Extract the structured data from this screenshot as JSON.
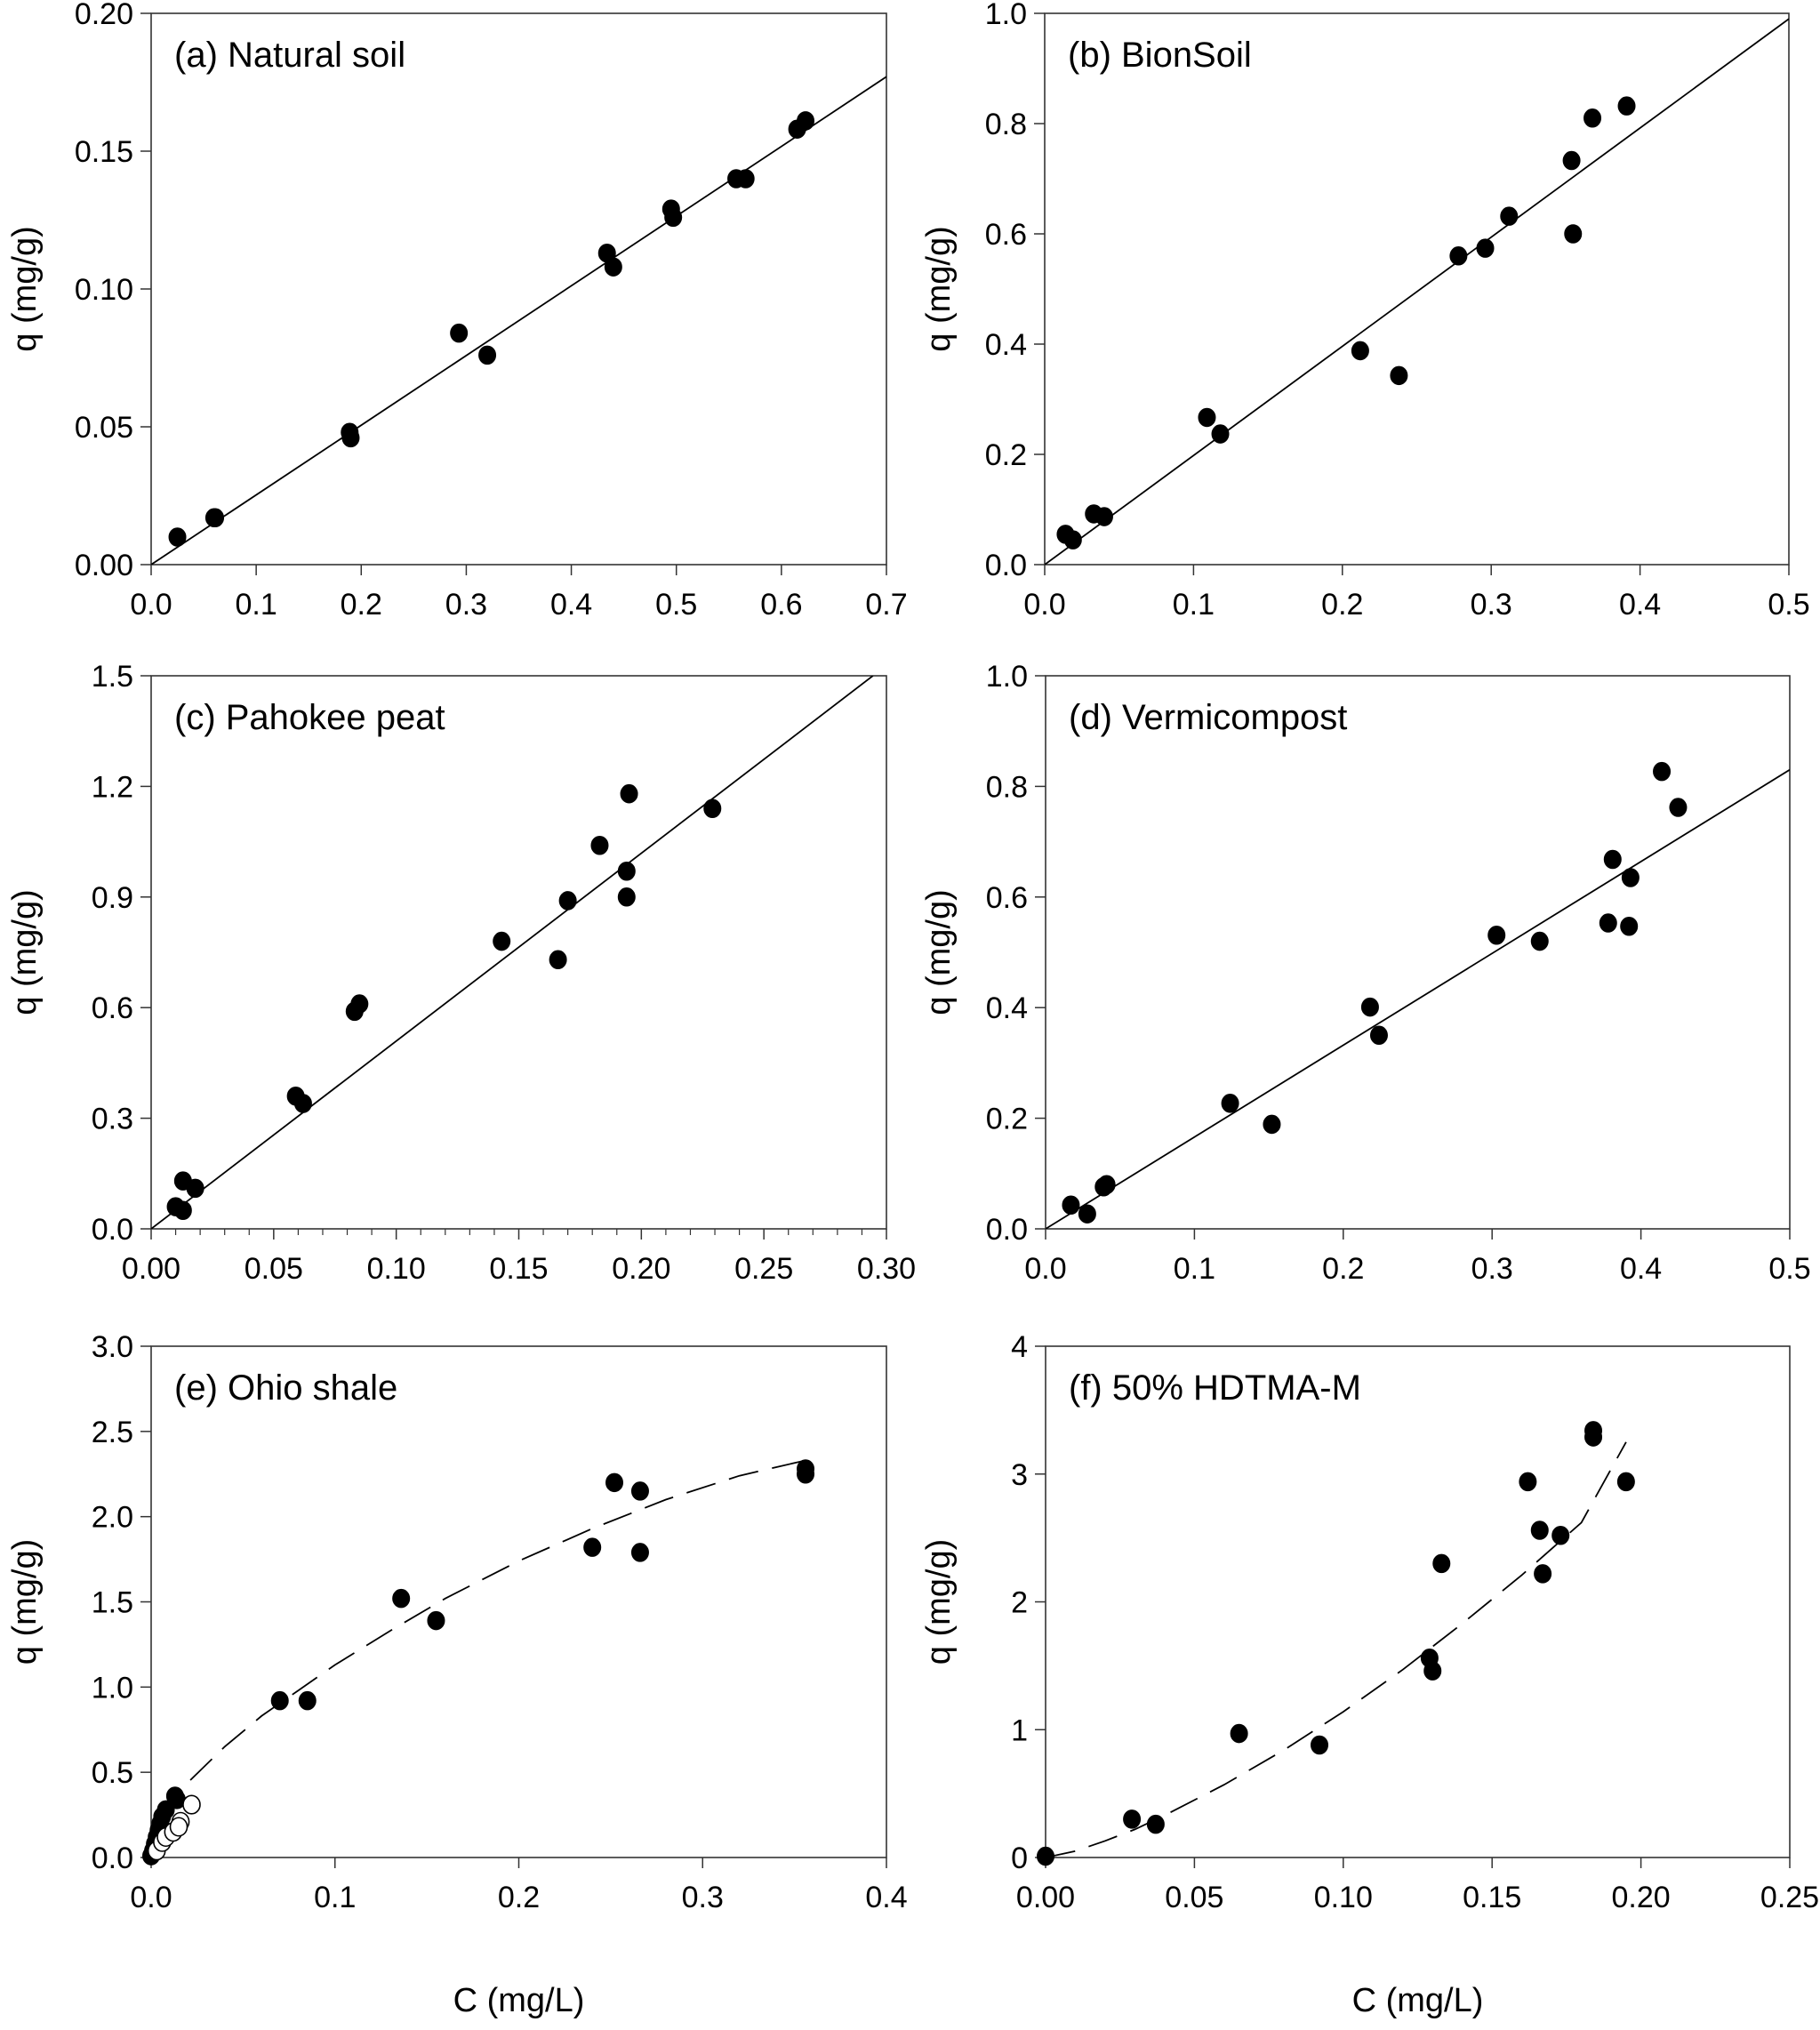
{
  "chart_data": [
    {
      "type": "scatter",
      "title": "(a) Natural soil",
      "xlabel": "",
      "ylabel": "q (mg/g)",
      "xlim": [
        0,
        0.7
      ],
      "ylim": [
        0,
        0.2
      ],
      "xticks": [
        "0.0",
        "0.1",
        "0.2",
        "0.3",
        "0.4",
        "0.5",
        "0.6",
        "0.7"
      ],
      "yticks": [
        "0.00",
        "0.05",
        "0.10",
        "0.15",
        "0.20"
      ],
      "xtick_values": [
        0,
        0.1,
        0.2,
        0.3,
        0.4,
        0.5,
        0.6,
        0.7
      ],
      "ytick_values": [
        0,
        0.05,
        0.1,
        0.15,
        0.2
      ],
      "minor_xticks": false,
      "grid": false,
      "series": [
        {
          "name": "data",
          "marker": "filled-circle",
          "points": [
            [
              0.025,
              0.01
            ],
            [
              0.06,
              0.017
            ],
            [
              0.061,
              0.017
            ],
            [
              0.189,
              0.048
            ],
            [
              0.19,
              0.046
            ],
            [
              0.293,
              0.084
            ],
            [
              0.32,
              0.076
            ],
            [
              0.434,
              0.113
            ],
            [
              0.44,
              0.108
            ],
            [
              0.495,
              0.129
            ],
            [
              0.497,
              0.126
            ],
            [
              0.557,
              0.14
            ],
            [
              0.566,
              0.14
            ],
            [
              0.615,
              0.158
            ],
            [
              0.623,
              0.161
            ]
          ]
        }
      ],
      "fit": {
        "style": "solid",
        "kind": "linear",
        "points": [
          [
            0,
            0
          ],
          [
            0.7,
            0.177
          ]
        ]
      }
    },
    {
      "type": "scatter",
      "title": "(b) BionSoil",
      "xlabel": "",
      "ylabel": "q (mg/g)",
      "xlim": [
        0,
        0.5
      ],
      "ylim": [
        0,
        1.0
      ],
      "xticks": [
        "0.0",
        "0.1",
        "0.2",
        "0.3",
        "0.4",
        "0.5"
      ],
      "yticks": [
        "0.0",
        "0.2",
        "0.4",
        "0.6",
        "0.8",
        "1.0"
      ],
      "xtick_values": [
        0,
        0.1,
        0.2,
        0.3,
        0.4,
        0.5
      ],
      "ytick_values": [
        0,
        0.2,
        0.4,
        0.6,
        0.8,
        1.0
      ],
      "minor_xticks": false,
      "grid": false,
      "series": [
        {
          "name": "data",
          "marker": "filled-circle",
          "points": [
            [
              0.014,
              0.055
            ],
            [
              0.019,
              0.045
            ],
            [
              0.033,
              0.092
            ],
            [
              0.04,
              0.087
            ],
            [
              0.109,
              0.267
            ],
            [
              0.118,
              0.237
            ],
            [
              0.212,
              0.388
            ],
            [
              0.238,
              0.343
            ],
            [
              0.278,
              0.56
            ],
            [
              0.296,
              0.574
            ],
            [
              0.312,
              0.632
            ],
            [
              0.354,
              0.733
            ],
            [
              0.355,
              0.6
            ],
            [
              0.368,
              0.81
            ],
            [
              0.391,
              0.832
            ]
          ]
        }
      ],
      "fit": {
        "style": "solid",
        "kind": "linear",
        "points": [
          [
            0,
            0
          ],
          [
            0.5,
            0.99
          ]
        ]
      }
    },
    {
      "type": "scatter",
      "title": "(c) Pahokee peat",
      "xlabel": "",
      "ylabel": "q (mg/g)",
      "xlim": [
        0,
        0.3
      ],
      "ylim": [
        0,
        1.5
      ],
      "xticks": [
        "0.00",
        "0.05",
        "0.10",
        "0.15",
        "0.20",
        "0.25",
        "0.30"
      ],
      "yticks": [
        "0.0",
        "0.3",
        "0.6",
        "0.9",
        "1.2",
        "1.5"
      ],
      "xtick_values": [
        0,
        0.05,
        0.1,
        0.15,
        0.2,
        0.25,
        0.3
      ],
      "ytick_values": [
        0,
        0.3,
        0.6,
        0.9,
        1.2,
        1.5
      ],
      "minor_xticks": true,
      "grid": false,
      "series": [
        {
          "name": "data",
          "marker": "filled-circle",
          "points": [
            [
              0.01,
              0.06
            ],
            [
              0.013,
              0.05
            ],
            [
              0.013,
              0.13
            ],
            [
              0.018,
              0.11
            ],
            [
              0.059,
              0.36
            ],
            [
              0.062,
              0.34
            ],
            [
              0.083,
              0.59
            ],
            [
              0.085,
              0.61
            ],
            [
              0.143,
              0.78
            ],
            [
              0.166,
              0.73
            ],
            [
              0.17,
              0.89
            ],
            [
              0.183,
              1.04
            ],
            [
              0.194,
              0.97
            ],
            [
              0.194,
              0.9
            ],
            [
              0.195,
              1.18
            ],
            [
              0.229,
              1.14
            ]
          ]
        }
      ],
      "fit": {
        "style": "solid",
        "kind": "linear",
        "points": [
          [
            0,
            0
          ],
          [
            0.2945,
            1.5
          ]
        ]
      }
    },
    {
      "type": "scatter",
      "title": "(d) Vermicompost",
      "xlabel": "",
      "ylabel": "q (mg/g)",
      "xlim": [
        0,
        0.5
      ],
      "ylim": [
        0,
        1.0
      ],
      "xticks": [
        "0.0",
        "0.1",
        "0.2",
        "0.3",
        "0.4",
        "0.5"
      ],
      "yticks": [
        "0.0",
        "0.2",
        "0.4",
        "0.6",
        "0.8",
        "1.0"
      ],
      "xtick_values": [
        0,
        0.1,
        0.2,
        0.3,
        0.4,
        0.5
      ],
      "ytick_values": [
        0,
        0.2,
        0.4,
        0.6,
        0.8,
        1.0
      ],
      "minor_xticks": false,
      "grid": false,
      "series": [
        {
          "name": "data",
          "marker": "filled-circle",
          "points": [
            [
              0.017,
              0.043
            ],
            [
              0.028,
              0.027
            ],
            [
              0.039,
              0.076
            ],
            [
              0.041,
              0.08
            ],
            [
              0.124,
              0.227
            ],
            [
              0.152,
              0.189
            ],
            [
              0.218,
              0.401
            ],
            [
              0.224,
              0.35
            ],
            [
              0.303,
              0.531
            ],
            [
              0.332,
              0.52
            ],
            [
              0.378,
              0.553
            ],
            [
              0.381,
              0.668
            ],
            [
              0.392,
              0.547
            ],
            [
              0.393,
              0.635
            ],
            [
              0.414,
              0.827
            ],
            [
              0.425,
              0.762
            ]
          ]
        }
      ],
      "fit": {
        "style": "solid",
        "kind": "linear",
        "points": [
          [
            0,
            0
          ],
          [
            0.5,
            0.83
          ]
        ]
      }
    },
    {
      "type": "scatter",
      "title": "(e) Ohio shale",
      "xlabel": "C (mg/L)",
      "ylabel": "q (mg/g)",
      "xlim": [
        0,
        0.4
      ],
      "ylim": [
        0,
        3.0
      ],
      "xticks": [
        "0.0",
        "0.1",
        "0.2",
        "0.3",
        "0.4"
      ],
      "yticks": [
        "0.0",
        "0.5",
        "1.0",
        "1.5",
        "2.0",
        "2.5",
        "3.0"
      ],
      "xtick_values": [
        0,
        0.1,
        0.2,
        0.3,
        0.4
      ],
      "ytick_values": [
        0,
        0.5,
        1.0,
        1.5,
        2.0,
        2.5,
        3.0
      ],
      "minor_xticks": false,
      "grid": false,
      "series": [
        {
          "name": "filled",
          "marker": "filled-circle",
          "points": [
            [
              0.0,
              0.01
            ],
            [
              0.001,
              0.04
            ],
            [
              0.002,
              0.08
            ],
            [
              0.003,
              0.12
            ],
            [
              0.004,
              0.16
            ],
            [
              0.005,
              0.2
            ],
            [
              0.006,
              0.24
            ],
            [
              0.008,
              0.28
            ],
            [
              0.013,
              0.36
            ],
            [
              0.014,
              0.34
            ],
            [
              0.07,
              0.92
            ],
            [
              0.085,
              0.92
            ],
            [
              0.136,
              1.52
            ],
            [
              0.155,
              1.39
            ],
            [
              0.24,
              1.82
            ],
            [
              0.252,
              2.2
            ],
            [
              0.266,
              2.15
            ],
            [
              0.266,
              1.79
            ],
            [
              0.356,
              2.28
            ],
            [
              0.356,
              2.25
            ]
          ]
        },
        {
          "name": "open",
          "marker": "open-circle",
          "points": [
            [
              0.003,
              0.04
            ],
            [
              0.006,
              0.09
            ],
            [
              0.008,
              0.12
            ],
            [
              0.012,
              0.15
            ],
            [
              0.016,
              0.21
            ],
            [
              0.015,
              0.18
            ],
            [
              0.022,
              0.31
            ]
          ]
        }
      ],
      "fit": {
        "style": "dashed",
        "kind": "freundlich",
        "points": [
          [
            0.0,
            0.0
          ],
          [
            0.002,
            0.14
          ],
          [
            0.005,
            0.22
          ],
          [
            0.01,
            0.31
          ],
          [
            0.02,
            0.44
          ],
          [
            0.04,
            0.65
          ],
          [
            0.06,
            0.83
          ],
          [
            0.08,
            0.98
          ],
          [
            0.1,
            1.13
          ],
          [
            0.13,
            1.33
          ],
          [
            0.16,
            1.52
          ],
          [
            0.2,
            1.74
          ],
          [
            0.24,
            1.93
          ],
          [
            0.28,
            2.1
          ],
          [
            0.32,
            2.24
          ],
          [
            0.356,
            2.33
          ]
        ]
      }
    },
    {
      "type": "scatter",
      "title": "(f) 50% HDTMA-M",
      "xlabel": "C (mg/L)",
      "ylabel": "q (mg/g)",
      "xlim": [
        0,
        0.25
      ],
      "ylim": [
        0,
        4
      ],
      "xticks": [
        "0.00",
        "0.05",
        "0.10",
        "0.15",
        "0.20",
        "0.25"
      ],
      "yticks": [
        "0",
        "1",
        "2",
        "3",
        "4"
      ],
      "xtick_values": [
        0,
        0.05,
        0.1,
        0.15,
        0.2,
        0.25
      ],
      "ytick_values": [
        0,
        1,
        2,
        3,
        4
      ],
      "minor_xticks": false,
      "grid": false,
      "series": [
        {
          "name": "data",
          "marker": "filled-circle",
          "points": [
            [
              0.0,
              0.01
            ],
            [
              0.029,
              0.3
            ],
            [
              0.037,
              0.26
            ],
            [
              0.065,
              0.97
            ],
            [
              0.092,
              0.88
            ],
            [
              0.129,
              1.56
            ],
            [
              0.13,
              1.46
            ],
            [
              0.133,
              2.3
            ],
            [
              0.162,
              2.94
            ],
            [
              0.166,
              2.56
            ],
            [
              0.167,
              2.22
            ],
            [
              0.173,
              2.52
            ],
            [
              0.184,
              3.34
            ],
            [
              0.184,
              3.29
            ],
            [
              0.195,
              2.94
            ]
          ]
        }
      ],
      "fit": {
        "style": "dashed",
        "kind": "freundlich",
        "points": [
          [
            0.0,
            0.0
          ],
          [
            0.01,
            0.05
          ],
          [
            0.02,
            0.13
          ],
          [
            0.03,
            0.22
          ],
          [
            0.04,
            0.33
          ],
          [
            0.06,
            0.57
          ],
          [
            0.08,
            0.84
          ],
          [
            0.1,
            1.14
          ],
          [
            0.12,
            1.47
          ],
          [
            0.14,
            1.83
          ],
          [
            0.16,
            2.21
          ],
          [
            0.18,
            2.62
          ],
          [
            0.195,
            3.25
          ]
        ]
      }
    }
  ]
}
